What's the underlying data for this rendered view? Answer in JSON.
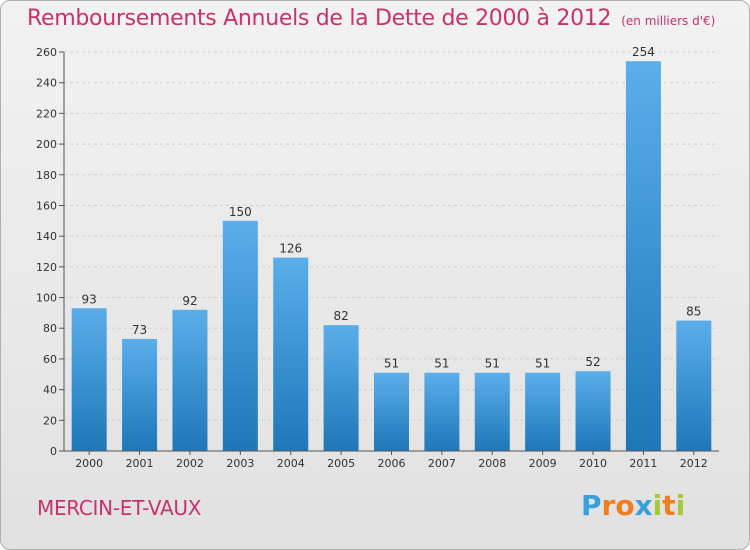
{
  "header": {
    "title": "Remboursements Annuels de la Dette de 2000 à 2012",
    "subtitle": "(en milliers d'€)"
  },
  "footer": {
    "city": "MERCIN-ET-VAUX",
    "logo": {
      "text": "Proxiti",
      "letter_colors": [
        "#3aa0dc",
        "#f07d1e",
        "#f07d1e",
        "#3aa0dc",
        "#a6c83a",
        "#f07d1e",
        "#a6c83a"
      ]
    }
  },
  "colors": {
    "bar_light": "#5aaeea",
    "bar_dark": "#1f77b8",
    "grid": "#d0d0d0",
    "axis": "#555555",
    "title": "#c8326d"
  },
  "chart_data": {
    "type": "bar",
    "categories": [
      "2000",
      "2001",
      "2002",
      "2003",
      "2004",
      "2005",
      "2006",
      "2007",
      "2008",
      "2009",
      "2010",
      "2011",
      "2012"
    ],
    "values": [
      93,
      73,
      92,
      150,
      126,
      82,
      51,
      51,
      51,
      51,
      52,
      254,
      85
    ],
    "ylim": [
      0,
      260
    ],
    "yticks": [
      0,
      20,
      40,
      60,
      80,
      100,
      120,
      140,
      160,
      180,
      200,
      220,
      240,
      260
    ],
    "grid": true,
    "data_labels": true
  }
}
